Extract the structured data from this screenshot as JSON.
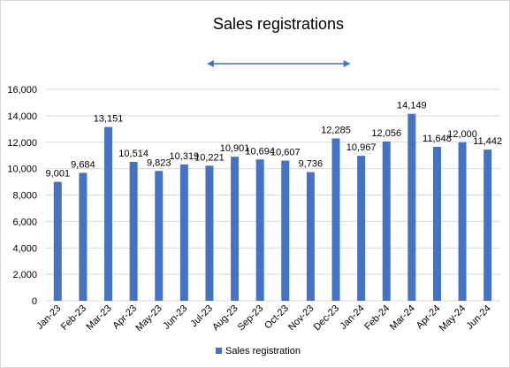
{
  "chart_data": {
    "type": "bar",
    "title": "Sales registrations",
    "xlabel": "",
    "ylabel": "",
    "ylim": [
      0,
      16000
    ],
    "yticks": [
      0,
      2000,
      4000,
      6000,
      8000,
      10000,
      12000,
      14000,
      16000
    ],
    "ytick_labels": [
      "0",
      "2,000",
      "4,000",
      "6,000",
      "8,000",
      "10,000",
      "12,000",
      "14,000",
      "16,000"
    ],
    "grid": true,
    "legend_position": "bottom",
    "categories": [
      "Jan-23",
      "Feb-23",
      "Mar-23",
      "Apr-23",
      "May-23",
      "Jun-23",
      "Jul-23",
      "Aug-23",
      "Sep-23",
      "Oct-23",
      "Nov-23",
      "Dec-23",
      "Jan-24",
      "Feb-24",
      "Mar-24",
      "Apr-24",
      "May-24",
      "Jun-24"
    ],
    "series": [
      {
        "name": "Sales registration",
        "values": [
          9001,
          9684,
          13151,
          10514,
          9823,
          10319,
          10221,
          10901,
          10694,
          10607,
          9736,
          12285,
          10967,
          12056,
          14149,
          11648,
          12000,
          11442
        ],
        "labels": [
          "9,001",
          "9,684",
          "13,151",
          "10,514",
          "9,823",
          "10,319",
          "10,221",
          "10,901",
          "10,694",
          "10,607",
          "9,736",
          "12,285",
          "10,967",
          "12,056",
          "14,149",
          "11,648",
          "12,000",
          "11,442"
        ],
        "color": "#4472C4"
      }
    ],
    "annotations": [
      {
        "type": "double-arrow",
        "from_category": "Jul-23",
        "to_category": "Jan-24",
        "color": "#4472C4"
      }
    ]
  }
}
